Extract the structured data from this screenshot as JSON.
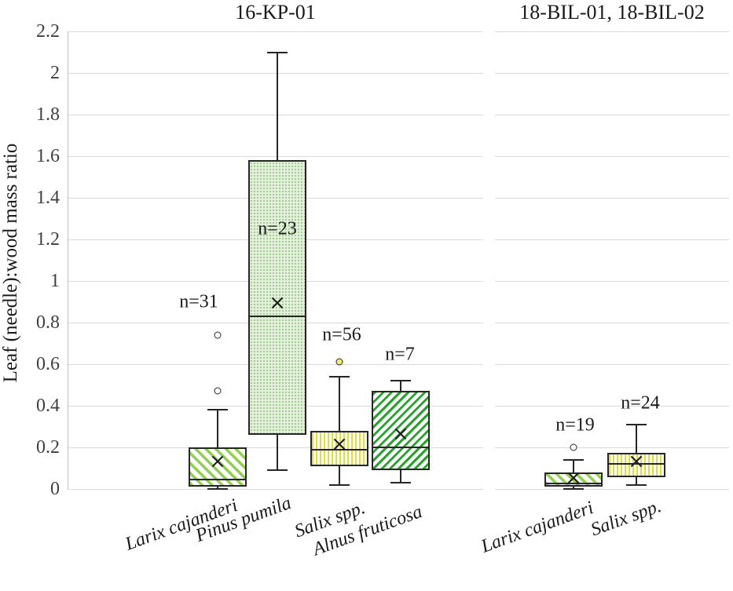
{
  "chart_data": {
    "type": "boxplot",
    "ylabel": "Leaf (needle):wood mass ratio",
    "ylim": [
      0,
      2.2
    ],
    "ytick_step": 0.2,
    "yticks": [
      "0",
      "0.2",
      "0.4",
      "0.6",
      "0.8",
      "1",
      "1.2",
      "1.4",
      "1.6",
      "1.8",
      "2",
      "2.2"
    ],
    "grid": "horizontal",
    "panels": [
      {
        "title": "16-KP-01",
        "boxes": [
          {
            "species": "Larix cajanderi",
            "n_label": "n=31",
            "pattern": "larix",
            "q1": 0.01,
            "q3": 0.2,
            "median": 0.045,
            "mean": 0.13,
            "whisker_low": 0.0,
            "whisker_high": 0.38,
            "outliers": [
              {
                "value": 0.47,
                "fill": "white"
              },
              {
                "value": 0.74,
                "fill": "white"
              }
            ]
          },
          {
            "species": "Pinus pumila",
            "n_label": "n=23",
            "pattern": "pinus",
            "q1": 0.26,
            "q3": 1.58,
            "median": 0.83,
            "mean": 0.89,
            "whisker_low": 0.09,
            "whisker_high": 2.1,
            "outliers": []
          },
          {
            "species": "Salix spp.",
            "n_label": "n=56",
            "pattern": "salix",
            "q1": 0.11,
            "q3": 0.28,
            "median": 0.19,
            "mean": 0.21,
            "whisker_low": 0.02,
            "whisker_high": 0.54,
            "outliers": [
              {
                "value": 0.61,
                "fill": "yellow"
              }
            ]
          },
          {
            "species": "Alnus fruticosa",
            "n_label": "n=7",
            "pattern": "alnus",
            "q1": 0.09,
            "q3": 0.47,
            "median": 0.2,
            "mean": 0.26,
            "whisker_low": 0.03,
            "whisker_high": 0.52,
            "outliers": []
          }
        ]
      },
      {
        "title": "18-BIL-01, 18-BIL-02",
        "boxes": [
          {
            "species": "Larix cajanderi",
            "n_label": "n=19",
            "pattern": "larix",
            "q1": 0.01,
            "q3": 0.08,
            "median": 0.025,
            "mean": 0.05,
            "whisker_low": 0.0,
            "whisker_high": 0.14,
            "outliers": [
              {
                "value": 0.2,
                "fill": "white"
              }
            ]
          },
          {
            "species": "Salix spp.",
            "n_label": "n=24",
            "pattern": "salix",
            "q1": 0.055,
            "q3": 0.175,
            "median": 0.12,
            "mean": 0.13,
            "whisker_low": 0.02,
            "whisker_high": 0.31,
            "outliers": []
          }
        ]
      }
    ],
    "colors": {
      "larix_stripe": "#92d050",
      "pinus_base": "#e3f1da",
      "pinus_dot": "#9cc98f",
      "salix_stripe": "#dde03a",
      "alnus_stripe": "#28a32c",
      "box_border": "#262626",
      "gridline": "#dadada",
      "axis_line": "#c0c0c0",
      "tick_label": "#404040",
      "outlier_yellow": "#f0ee6e"
    }
  }
}
